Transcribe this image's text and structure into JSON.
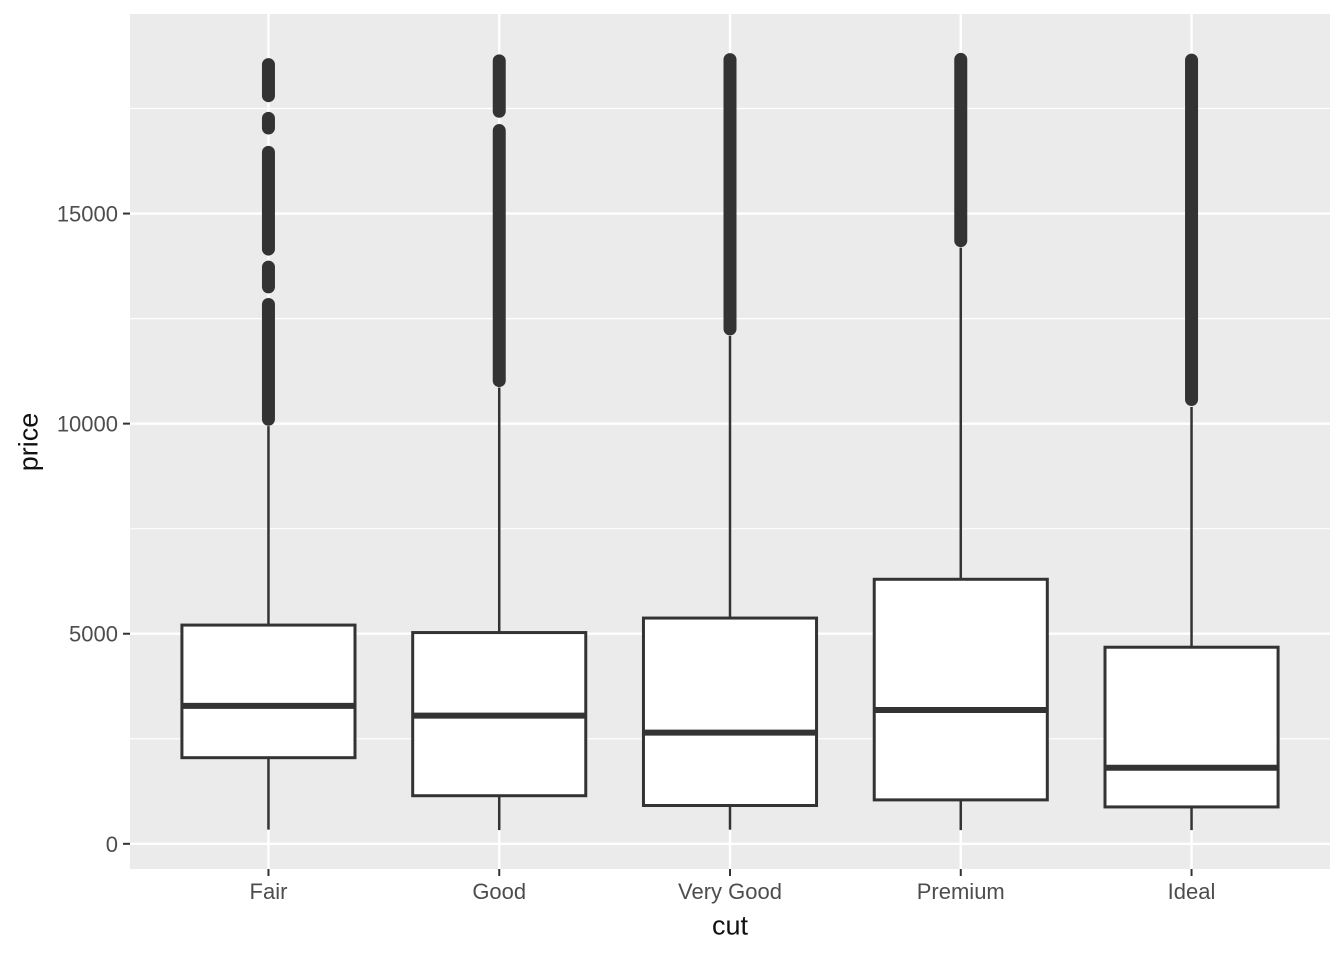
{
  "chart_data": {
    "type": "boxplot",
    "title": "",
    "xlabel": "cut",
    "ylabel": "price",
    "x_categories": [
      "Fair",
      "Good",
      "Very Good",
      "Premium",
      "Ideal"
    ],
    "y_ticks": [
      0,
      5000,
      10000,
      15000
    ],
    "y_tick_labels": [
      "0",
      "5000",
      "10000",
      "15000"
    ],
    "y_minor_ticks": [
      2500,
      7500,
      12500,
      17500
    ],
    "ylim": [
      -599,
      19749
    ],
    "grid": "major-and-minor-horizontal, major-vertical-at-categories",
    "legend": "none",
    "series": [
      {
        "cut": "Fair",
        "min": 337,
        "q1": 2050,
        "median": 3282,
        "q3": 5206,
        "upper_whisker": 9940,
        "outlier_max": 18700,
        "outlier_segments": [
          [
            18700,
            17650
          ],
          [
            17420,
            16880
          ],
          [
            16610,
            14000
          ],
          [
            13880,
            13100
          ],
          [
            12990,
            9950
          ]
        ]
      },
      {
        "cut": "Good",
        "min": 327,
        "q1": 1145,
        "median": 3050,
        "q3": 5028,
        "upper_whisker": 10860,
        "outlier_max": 18788,
        "outlier_segments": [
          [
            18788,
            17280
          ],
          [
            17130,
            10870
          ]
        ]
      },
      {
        "cut": "Very Good",
        "min": 336,
        "q1": 912,
        "median": 2648,
        "q3": 5373,
        "upper_whisker": 12090,
        "outlier_max": 18818,
        "outlier_segments": [
          [
            18818,
            12100
          ]
        ]
      },
      {
        "cut": "Premium",
        "min": 326,
        "q1": 1046,
        "median": 3185,
        "q3": 6296,
        "upper_whisker": 14190,
        "outlier_max": 18823,
        "outlier_segments": [
          [
            18823,
            14200
          ]
        ]
      },
      {
        "cut": "Ideal",
        "min": 326,
        "q1": 878,
        "median": 1810,
        "q3": 4679,
        "upper_whisker": 10400,
        "outlier_max": 18806,
        "outlier_segments": [
          [
            18806,
            10420
          ]
        ]
      }
    ],
    "colors": {
      "panel_background": "#EBEBEB",
      "gridline": "#FFFFFF",
      "box_stroke": "#333333",
      "box_fill": "#FFFFFF",
      "tick_text": "#4D4D4D",
      "title_text": "#111111"
    }
  }
}
